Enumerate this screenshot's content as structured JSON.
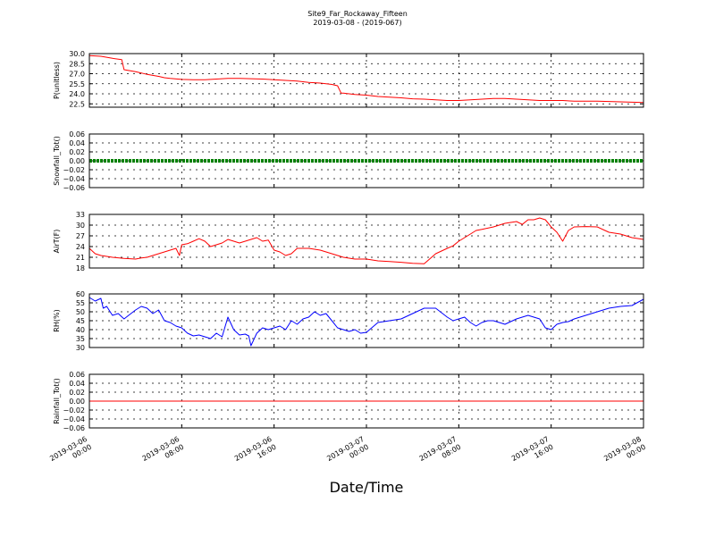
{
  "title_line1": "Site9_Far_Rockaway_Fifteen",
  "title_line2": "2019-03-08 - (2019-067)",
  "xlabel": "Date/Time",
  "x_ticks": [
    {
      "line1": "2019-03-06",
      "line2": "00:00"
    },
    {
      "line1": "2019-03-06",
      "line2": "08:00"
    },
    {
      "line1": "2019-03-06",
      "line2": "16:00"
    },
    {
      "line1": "2019-03-07",
      "line2": "00:00"
    },
    {
      "line1": "2019-03-07",
      "line2": "08:00"
    },
    {
      "line1": "2019-03-07",
      "line2": "16:00"
    },
    {
      "line1": "2019-03-08",
      "line2": "00:00"
    }
  ],
  "chart_data": [
    {
      "type": "line",
      "ylabel": "P(unitless)",
      "ylim": [
        22.0,
        30.0
      ],
      "yticks": [
        "22.5",
        "24.0",
        "25.5",
        "27.0",
        "28.5",
        "30.0"
      ],
      "ytick_values": [
        22.5,
        24.0,
        25.5,
        27.0,
        28.5,
        30.0
      ],
      "grid": true,
      "color": "#ff0000",
      "x_hours": [
        0,
        1,
        2,
        2.8,
        3,
        4,
        4.5,
        5,
        6,
        6.5,
        7,
        8,
        9,
        10,
        11,
        12,
        13,
        14,
        15,
        16,
        17,
        18,
        19,
        20,
        21,
        21.5,
        21.8,
        22,
        23,
        24,
        25,
        26,
        27,
        28,
        29,
        30,
        31,
        32,
        33,
        34,
        35,
        36,
        37,
        38,
        39,
        40,
        41,
        42,
        43,
        44,
        45,
        46,
        47,
        48
      ],
      "values": [
        29.7,
        29.6,
        29.3,
        29.1,
        27.6,
        27.3,
        27.1,
        26.9,
        26.6,
        26.4,
        26.3,
        26.15,
        26.1,
        26.1,
        26.2,
        26.3,
        26.3,
        26.25,
        26.2,
        26.1,
        26.0,
        25.9,
        25.7,
        25.6,
        25.4,
        25.2,
        24.1,
        24.1,
        23.9,
        23.8,
        23.6,
        23.5,
        23.4,
        23.25,
        23.2,
        23.1,
        23.0,
        23.0,
        23.1,
        23.2,
        23.3,
        23.3,
        23.2,
        23.1,
        23.0,
        23.0,
        23.0,
        22.9,
        22.9,
        22.9,
        22.85,
        22.8,
        22.75,
        22.7
      ]
    },
    {
      "type": "line",
      "ylabel": "Snowfall_Tot()",
      "ylim": [
        -0.06,
        0.06
      ],
      "yticks": [
        "−0.06",
        "−0.04",
        "−0.02",
        "0.00",
        "0.02",
        "0.04",
        "0.06"
      ],
      "ytick_values": [
        -0.06,
        -0.04,
        -0.02,
        0.0,
        0.02,
        0.04,
        0.06
      ],
      "grid": true,
      "color": "#008000",
      "thick": true,
      "x_hours": [
        0,
        48
      ],
      "values": [
        0.0,
        0.0
      ]
    },
    {
      "type": "line",
      "ylabel": "AirT(F)",
      "ylim": [
        18,
        33
      ],
      "yticks": [
        "18",
        "21",
        "24",
        "27",
        "30",
        "33"
      ],
      "ytick_values": [
        18,
        21,
        24,
        27,
        30,
        33
      ],
      "grid": true,
      "color": "#ff0000",
      "x_hours": [
        0,
        0.5,
        1,
        2,
        3,
        4,
        4.5,
        5,
        6,
        7,
        7.5,
        7.8,
        8,
        8.5,
        9,
        9.5,
        10,
        10.5,
        11,
        11.5,
        12,
        12.5,
        13,
        13.5,
        14,
        14.5,
        15,
        15.5,
        16,
        16.5,
        17,
        17.5,
        18,
        19,
        20,
        21,
        22,
        23,
        24,
        25,
        26,
        27,
        28,
        29,
        30,
        31,
        31.5,
        32,
        33,
        33.5,
        34,
        35,
        36,
        37,
        37.5,
        38,
        38.5,
        39,
        39.5,
        40,
        40.5,
        41,
        41.5,
        42,
        43,
        44,
        45,
        46,
        47,
        48
      ],
      "values": [
        23.5,
        22.0,
        21.5,
        21.0,
        20.7,
        20.5,
        20.8,
        21.0,
        22.0,
        23.0,
        23.5,
        21.5,
        24.5,
        24.8,
        25.5,
        26.2,
        25.5,
        24.0,
        24.5,
        25.0,
        26.0,
        25.5,
        25.0,
        25.5,
        26.0,
        26.5,
        25.5,
        25.8,
        23.0,
        22.5,
        21.5,
        22.0,
        23.5,
        23.5,
        23.0,
        22.0,
        21.0,
        20.5,
        20.5,
        20.0,
        19.8,
        19.6,
        19.3,
        19.2,
        22.0,
        23.5,
        24.2,
        25.5,
        27.5,
        28.5,
        28.8,
        29.5,
        30.5,
        31.0,
        30.2,
        31.5,
        31.5,
        32.0,
        31.5,
        29.5,
        28.0,
        25.5,
        28.5,
        29.5,
        29.6,
        29.5,
        28.0,
        27.5,
        26.5,
        26.0
      ]
    },
    {
      "type": "line",
      "ylabel": "RH(%)",
      "ylim": [
        30,
        60
      ],
      "yticks": [
        "30",
        "35",
        "40",
        "45",
        "50",
        "55",
        "60"
      ],
      "ytick_values": [
        30,
        35,
        40,
        45,
        50,
        55,
        60
      ],
      "grid": true,
      "color": "#0000ff",
      "x_hours": [
        0,
        0.5,
        1,
        1.2,
        1.5,
        2,
        2.5,
        3,
        3.5,
        4,
        4.5,
        5,
        5.5,
        6,
        6.5,
        7,
        7.5,
        8,
        8.5,
        9,
        9.5,
        10,
        10.5,
        11,
        11.5,
        12,
        12.5,
        13,
        13.5,
        13.8,
        14,
        14.5,
        15,
        15.5,
        16,
        16.5,
        17,
        17.5,
        18,
        18.5,
        19,
        19.5,
        20,
        20.5,
        21,
        21.5,
        22,
        22.5,
        23,
        23.5,
        24,
        25,
        26,
        27,
        28,
        29,
        30,
        31,
        31.5,
        32,
        32.5,
        33,
        33.5,
        34,
        34.5,
        35,
        36,
        37,
        38,
        39,
        39.5,
        40,
        40.5,
        41,
        41.5,
        42,
        43,
        44,
        45,
        46,
        47,
        48
      ],
      "values": [
        58,
        56,
        57.5,
        52,
        53,
        48,
        49,
        46,
        48.5,
        51,
        53,
        52,
        49,
        51,
        45,
        44,
        42,
        41,
        38,
        36.5,
        37,
        36,
        35,
        38,
        36,
        47,
        40,
        37,
        37.5,
        36.5,
        31,
        38,
        41,
        40,
        41,
        42,
        40,
        45,
        43,
        46,
        47,
        50,
        48,
        49,
        45,
        41,
        40,
        39,
        40,
        38,
        38.5,
        44,
        45,
        46,
        49,
        52,
        52,
        47,
        45,
        46,
        47,
        44,
        42,
        44,
        45,
        45,
        43,
        46,
        48,
        46,
        41,
        40,
        43,
        44,
        44.5,
        46,
        48,
        50,
        52,
        53,
        53.5,
        57
      ]
    },
    {
      "type": "line",
      "ylabel": "Rainfall_Tot()",
      "ylim": [
        -0.06,
        0.06
      ],
      "yticks": [
        "−0.06",
        "−0.04",
        "−0.02",
        "0.00",
        "0.02",
        "0.04",
        "0.06"
      ],
      "ytick_values": [
        -0.06,
        -0.04,
        -0.02,
        0.0,
        0.02,
        0.04,
        0.06
      ],
      "grid": true,
      "color": "#ff0000",
      "x_hours": [
        0,
        48
      ],
      "values": [
        0.0,
        0.0
      ]
    }
  ]
}
